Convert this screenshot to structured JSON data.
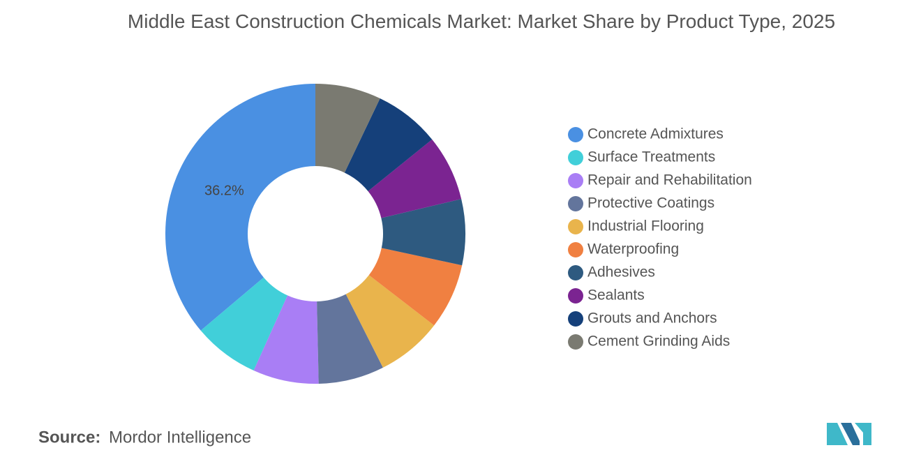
{
  "chart_data": {
    "type": "donut",
    "title": "Middle East Construction Chemicals Market: Market Share by Product Type, 2025",
    "categories": [
      "Concrete Admixtures",
      "Surface Treatments",
      "Repair and Rehabilitation",
      "Protective Coatings",
      "Industrial Flooring",
      "Waterproofing",
      "Adhesives",
      "Sealants",
      "Grouts and Anchors",
      "Cement Grinding Aids"
    ],
    "values": [
      36.2,
      7.1,
      7.1,
      7.1,
      7.1,
      7.1,
      7.1,
      7.1,
      7.1,
      7.1
    ],
    "value_labels": [
      "36.2%",
      null,
      null,
      null,
      null,
      null,
      null,
      null,
      null,
      null
    ],
    "colors": [
      "#4a90e2",
      "#41cfd9",
      "#a97ef5",
      "#63759c",
      "#e9b44c",
      "#f08041",
      "#2e5a80",
      "#7b2491",
      "#15407a",
      "#7a7a71"
    ],
    "direction": "counterclockwise",
    "legend": "right",
    "source_label": "Source:",
    "source": "Mordor Intelligence"
  }
}
